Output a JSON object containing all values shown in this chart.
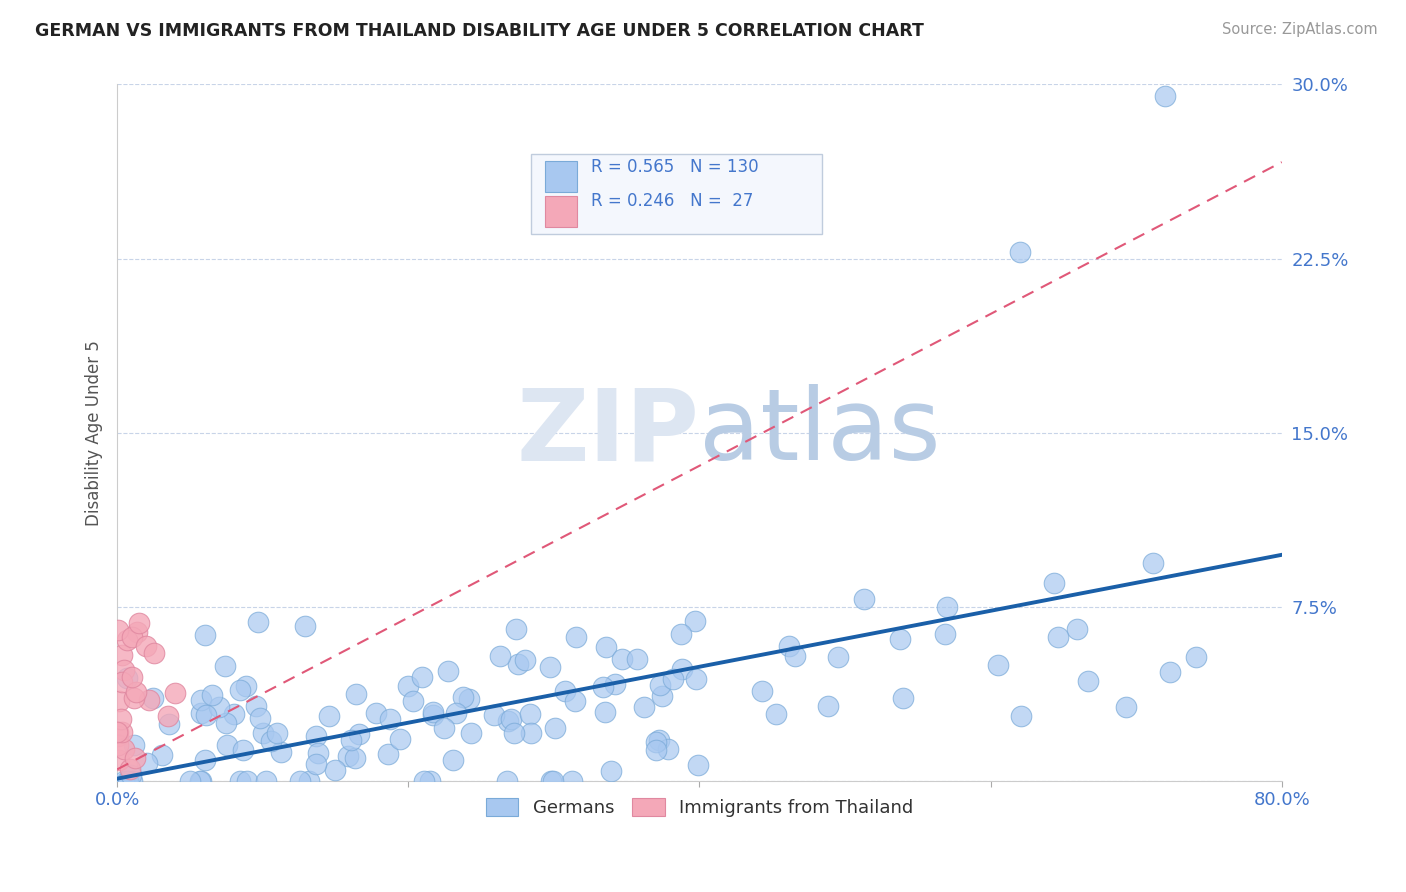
{
  "title": "GERMAN VS IMMIGRANTS FROM THAILAND DISABILITY AGE UNDER 5 CORRELATION CHART",
  "source": "Source: ZipAtlas.com",
  "ylabel": "Disability Age Under 5",
  "xlim": [
    0.0,
    0.8
  ],
  "ylim": [
    0.0,
    0.3
  ],
  "xticks": [
    0.0,
    0.2,
    0.4,
    0.6,
    0.8
  ],
  "yticks": [
    0.0,
    0.075,
    0.15,
    0.225,
    0.3
  ],
  "german_R": 0.565,
  "german_N": 130,
  "thai_R": 0.246,
  "thai_N": 27,
  "german_color": "#a8c8f0",
  "german_edge_color": "#7aaad8",
  "german_line_color": "#1a5fa8",
  "thai_color": "#f4a8b8",
  "thai_edge_color": "#e088a0",
  "thai_line_color": "#e05878",
  "watermark_color": "#ccd8ee",
  "background_color": "#ffffff",
  "grid_color": "#c8d4e8",
  "title_color": "#222222",
  "tick_label_color": "#4477cc",
  "axis_label_color": "#555555"
}
